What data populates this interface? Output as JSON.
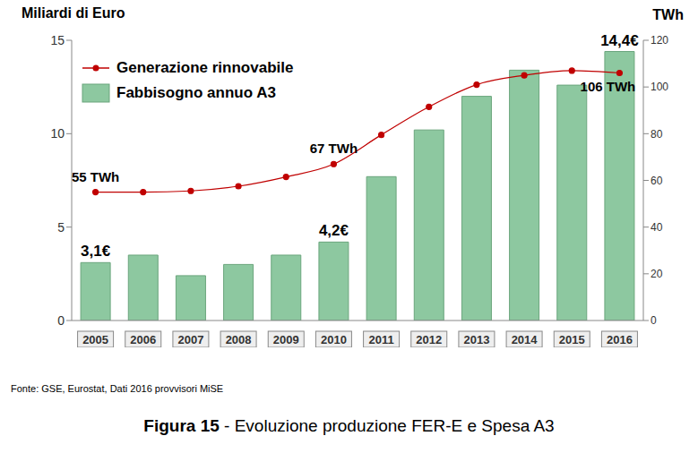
{
  "chart_data": {
    "type": "bar",
    "title": "Figura 15 - Evoluzione produzione FER-E e Spesa A3",
    "source": "Fonte: GSE, Eurostat, Dati 2016 provvisori MiSE",
    "ylabel": "Miliardi di Euro",
    "y2label": "TWh",
    "categories": [
      "2005",
      "2006",
      "2007",
      "2008",
      "2009",
      "2010",
      "2011",
      "2012",
      "2013",
      "2014",
      "2015",
      "2016"
    ],
    "series": [
      {
        "name": "Generazione rinnovabile",
        "type": "line",
        "axis": "y2",
        "color": "#c00000",
        "marker": "circle",
        "line_style": "solid",
        "values": [
          55,
          55,
          55.5,
          57.5,
          61.5,
          67,
          79.5,
          91.5,
          101,
          105,
          107,
          106
        ],
        "value_labels": [
          "55 TWh",
          null,
          null,
          null,
          null,
          "67 TWh",
          null,
          null,
          null,
          null,
          null,
          "106 TWh"
        ]
      },
      {
        "name": "Fabbisogno annuo A3",
        "type": "bar",
        "color": "#8dc8a0",
        "values": [
          3.1,
          3.5,
          2.4,
          3.0,
          3.5,
          4.2,
          7.7,
          10.2,
          12.0,
          13.4,
          12.6,
          14.4
        ],
        "value_labels": [
          "3,1€",
          null,
          null,
          null,
          null,
          "4,2€",
          null,
          null,
          null,
          null,
          null,
          "14,4€"
        ]
      }
    ],
    "ylim": [
      0,
      15
    ],
    "yticks": [
      0,
      5,
      10,
      15
    ],
    "y2lim": [
      0,
      120
    ],
    "y2ticks": [
      0,
      20,
      40,
      60,
      80,
      100,
      120
    ],
    "grid": false,
    "legend": "upper left",
    "data_labels": true
  }
}
